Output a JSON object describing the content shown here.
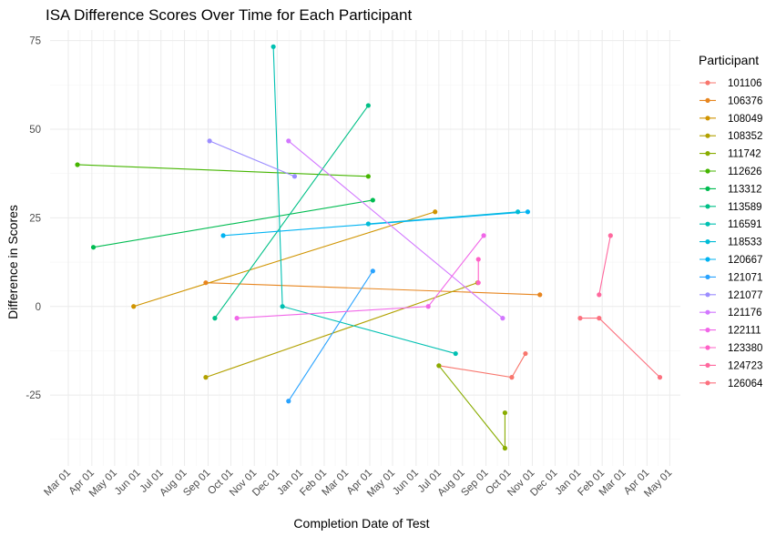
{
  "chart_data": {
    "type": "line",
    "title": "ISA Difference Scores Over Time for Each Participant",
    "xlabel": "Completion Date of Test",
    "ylabel": "Difference in Scores",
    "x_type": "date",
    "xlim": [
      "2023-02-05",
      "2025-05-15"
    ],
    "ylim": [
      -45,
      78
    ],
    "y_ticks": [
      -25,
      0,
      25,
      50,
      75
    ],
    "x_ticks": [
      {
        "date": "2023-03-01",
        "label": "Mar 01"
      },
      {
        "date": "2023-04-01",
        "label": "Apr 01"
      },
      {
        "date": "2023-05-01",
        "label": "May 01"
      },
      {
        "date": "2023-06-01",
        "label": "Jun 01"
      },
      {
        "date": "2023-07-01",
        "label": "Jul 01"
      },
      {
        "date": "2023-08-01",
        "label": "Aug 01"
      },
      {
        "date": "2023-09-01",
        "label": "Sep 01"
      },
      {
        "date": "2023-10-01",
        "label": "Oct 01"
      },
      {
        "date": "2023-11-01",
        "label": "Nov 01"
      },
      {
        "date": "2023-12-01",
        "label": "Dec 01"
      },
      {
        "date": "2024-01-01",
        "label": "Jan 01"
      },
      {
        "date": "2024-02-01",
        "label": "Feb 01"
      },
      {
        "date": "2024-03-01",
        "label": "Mar 01"
      },
      {
        "date": "2024-04-01",
        "label": "Apr 01"
      },
      {
        "date": "2024-05-01",
        "label": "May 01"
      },
      {
        "date": "2024-06-01",
        "label": "Jun 01"
      },
      {
        "date": "2024-07-01",
        "label": "Jul 01"
      },
      {
        "date": "2024-08-01",
        "label": "Aug 01"
      },
      {
        "date": "2024-09-01",
        "label": "Sep 01"
      },
      {
        "date": "2024-10-01",
        "label": "Oct 01"
      },
      {
        "date": "2024-11-01",
        "label": "Nov 01"
      },
      {
        "date": "2024-12-01",
        "label": "Dec 01"
      },
      {
        "date": "2025-01-01",
        "label": "Jan 01"
      },
      {
        "date": "2025-02-01",
        "label": "Feb 01"
      },
      {
        "date": "2025-03-01",
        "label": "Mar 01"
      },
      {
        "date": "2025-04-01",
        "label": "Apr 01"
      },
      {
        "date": "2025-05-01",
        "label": "May 01"
      }
    ],
    "grid": true,
    "legend": {
      "title": "Participant",
      "position": "right"
    },
    "series": [
      {
        "name": "101106",
        "color": "#F8766D",
        "points": [
          [
            "2024-07-01",
            -16.7
          ],
          [
            "2024-10-05",
            -20
          ],
          [
            "2024-10-23",
            -13.3
          ]
        ]
      },
      {
        "name": "106376",
        "color": "#E7851E",
        "points": [
          [
            "2023-08-29",
            6.7
          ],
          [
            "2024-11-11",
            3.3
          ]
        ]
      },
      {
        "name": "108049",
        "color": "#D09400",
        "points": [
          [
            "2023-05-26",
            0
          ],
          [
            "2024-06-26",
            26.7
          ]
        ]
      },
      {
        "name": "108352",
        "color": "#B2A100",
        "points": [
          [
            "2023-08-29",
            -20
          ],
          [
            "2024-08-21",
            6.7
          ]
        ]
      },
      {
        "name": "111742",
        "color": "#89AC00",
        "points": [
          [
            "2024-07-01",
            -16.7
          ],
          [
            "2024-09-26",
            -40
          ],
          [
            "2024-09-26",
            -30
          ]
        ]
      },
      {
        "name": "112626",
        "color": "#45B500",
        "points": [
          [
            "2023-03-13",
            40
          ],
          [
            "2024-03-30",
            36.7
          ]
        ]
      },
      {
        "name": "113312",
        "color": "#00BC51",
        "points": [
          [
            "2023-04-03",
            16.7
          ],
          [
            "2024-04-05",
            30
          ]
        ]
      },
      {
        "name": "113589",
        "color": "#00C087",
        "points": [
          [
            "2023-09-10",
            -3.3
          ],
          [
            "2024-03-30",
            56.7
          ]
        ]
      },
      {
        "name": "116591",
        "color": "#00C0B2",
        "points": [
          [
            "2023-11-26",
            73.3
          ],
          [
            "2023-12-08",
            0
          ],
          [
            "2024-07-23",
            -13.3
          ]
        ]
      },
      {
        "name": "118533",
        "color": "#00BCD6",
        "points": [
          [
            "2024-03-30",
            23.3
          ],
          [
            "2024-10-13",
            26.7
          ]
        ]
      },
      {
        "name": "120667",
        "color": "#00B3F2",
        "points": [
          [
            "2023-09-21",
            20
          ],
          [
            "2024-10-26",
            26.7
          ]
        ]
      },
      {
        "name": "121071",
        "color": "#29A3FF",
        "points": [
          [
            "2023-12-16",
            -26.7
          ],
          [
            "2024-04-05",
            10
          ]
        ]
      },
      {
        "name": "121077",
        "color": "#9C8DFF",
        "points": [
          [
            "2023-09-03",
            46.7
          ],
          [
            "2023-12-24",
            36.7
          ]
        ]
      },
      {
        "name": "121176",
        "color": "#D277FF",
        "points": [
          [
            "2023-12-16",
            46.7
          ],
          [
            "2024-09-23",
            -3.3
          ]
        ]
      },
      {
        "name": "122111",
        "color": "#F166E8",
        "points": [
          [
            "2023-10-09",
            -3.3
          ],
          [
            "2024-06-17",
            0
          ],
          [
            "2024-08-29",
            20
          ]
        ]
      },
      {
        "name": "123380",
        "color": "#FF61C7",
        "points": [
          [
            "2024-08-22",
            6.7
          ],
          [
            "2024-08-22",
            13.3
          ]
        ]
      },
      {
        "name": "124723",
        "color": "#FF689E",
        "points": [
          [
            "2025-01-28",
            3.3
          ],
          [
            "2025-02-12",
            20
          ]
        ]
      },
      {
        "name": "126064",
        "color": "#FC717F",
        "points": [
          [
            "2025-01-03",
            -3.3
          ],
          [
            "2025-01-28",
            -3.3
          ],
          [
            "2025-04-18",
            -20
          ]
        ]
      }
    ]
  }
}
